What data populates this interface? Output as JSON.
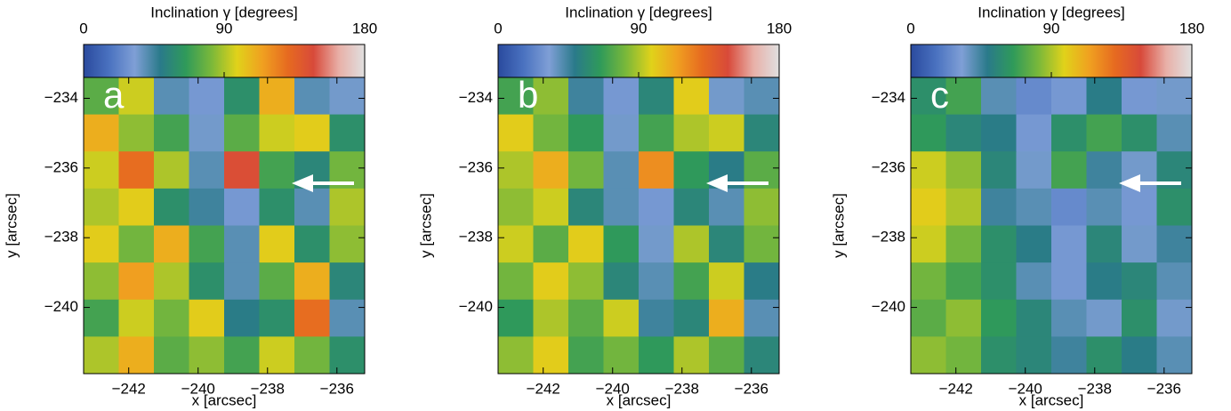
{
  "chart_data": [
    {
      "type": "heatmap",
      "title": "Inclination γ [degrees]",
      "label": "a",
      "x_label": "x [arcsec]",
      "y_label": "y [arcsec]",
      "xlim": [
        -243.3,
        -235.2
      ],
      "ylim": [
        -241.9,
        -233.4
      ],
      "zlim": [
        0,
        180
      ],
      "xticks": [
        {
          "value": -242,
          "label": "−242"
        },
        {
          "value": -240,
          "label": "−240"
        },
        {
          "value": -238,
          "label": "−238"
        },
        {
          "value": -236,
          "label": "−236"
        }
      ],
      "yticks": [
        {
          "value": -234,
          "label": "−234"
        },
        {
          "value": -236,
          "label": "−236"
        },
        {
          "value": -238,
          "label": "−238"
        },
        {
          "value": -240,
          "label": "−240"
        }
      ],
      "zticks": [
        0,
        90,
        180
      ],
      "colors": [
        "#2a4a9e",
        "#4a72c0",
        "#7f9fd6",
        "#2a7a8a",
        "#2f9a5a",
        "#7ab83a",
        "#e0d21a",
        "#f0a020",
        "#e66a20",
        "#d84a3a",
        "#e8b0a8",
        "#e0e0e0"
      ],
      "values": [
        [
          75,
          95,
          40,
          30,
          60,
          110,
          40,
          35
        ],
        [
          110,
          85,
          70,
          35,
          75,
          95,
          100,
          60
        ],
        [
          95,
          130,
          90,
          40,
          145,
          70,
          55,
          80
        ],
        [
          90,
          100,
          60,
          45,
          30,
          60,
          40,
          90
        ],
        [
          100,
          80,
          110,
          70,
          40,
          100,
          60,
          85
        ],
        [
          85,
          115,
          90,
          60,
          40,
          75,
          110,
          55
        ],
        [
          70,
          95,
          80,
          100,
          50,
          60,
          130,
          40
        ],
        [
          90,
          110,
          75,
          85,
          70,
          95,
          80,
          60
        ]
      ]
    },
    {
      "type": "heatmap",
      "title": "Inclination γ [degrees]",
      "label": "b",
      "x_label": "x [arcsec]",
      "y_label": "y [arcsec]",
      "xlim": [
        -243.3,
        -235.2
      ],
      "ylim": [
        -241.9,
        -233.4
      ],
      "zlim": [
        0,
        180
      ],
      "xticks": [
        {
          "value": -242,
          "label": "−242"
        },
        {
          "value": -240,
          "label": "−240"
        },
        {
          "value": -238,
          "label": "−238"
        },
        {
          "value": -236,
          "label": "−236"
        }
      ],
      "yticks": [
        {
          "value": -234,
          "label": "−234"
        },
        {
          "value": -236,
          "label": "−236"
        },
        {
          "value": -238,
          "label": "−238"
        },
        {
          "value": -240,
          "label": "−240"
        }
      ],
      "zticks": [
        0,
        90,
        180
      ],
      "colors": [
        "#2a4a9e",
        "#4a72c0",
        "#7f9fd6",
        "#2a7a8a",
        "#2f9a5a",
        "#7ab83a",
        "#e0d21a",
        "#f0a020",
        "#e66a20",
        "#d84a3a",
        "#e8b0a8",
        "#e0e0e0"
      ],
      "values": [
        [
          70,
          85,
          45,
          30,
          55,
          100,
          35,
          40
        ],
        [
          100,
          80,
          65,
          35,
          70,
          90,
          95,
          55
        ],
        [
          90,
          110,
          80,
          40,
          120,
          65,
          50,
          75
        ],
        [
          85,
          95,
          55,
          40,
          30,
          55,
          40,
          85
        ],
        [
          95,
          75,
          100,
          65,
          35,
          90,
          55,
          80
        ],
        [
          80,
          100,
          85,
          55,
          40,
          70,
          95,
          50
        ],
        [
          65,
          90,
          75,
          95,
          45,
          55,
          110,
          40
        ],
        [
          85,
          100,
          70,
          80,
          65,
          90,
          75,
          55
        ]
      ]
    },
    {
      "type": "heatmap",
      "title": "Inclination γ [degrees]",
      "label": "c",
      "x_label": "x [arcsec]",
      "y_label": "y [arcsec]",
      "xlim": [
        -243.3,
        -235.2
      ],
      "ylim": [
        -241.9,
        -233.4
      ],
      "zlim": [
        0,
        180
      ],
      "xticks": [
        {
          "value": -242,
          "label": "−242"
        },
        {
          "value": -240,
          "label": "−240"
        },
        {
          "value": -238,
          "label": "−238"
        },
        {
          "value": -236,
          "label": "−236"
        }
      ],
      "yticks": [
        {
          "value": -234,
          "label": "−234"
        },
        {
          "value": -236,
          "label": "−236"
        },
        {
          "value": -238,
          "label": "−238"
        },
        {
          "value": -240,
          "label": "−240"
        }
      ],
      "zticks": [
        0,
        90,
        180
      ],
      "colors": [
        "#2a4a9e",
        "#4a72c0",
        "#7f9fd6",
        "#2a7a8a",
        "#2f9a5a",
        "#7ab83a",
        "#e0d21a",
        "#f0a020",
        "#e66a20",
        "#d84a3a",
        "#e8b0a8",
        "#e0e0e0"
      ],
      "values": [
        [
          60,
          70,
          40,
          25,
          30,
          50,
          30,
          35
        ],
        [
          65,
          55,
          50,
          30,
          60,
          70,
          60,
          40
        ],
        [
          95,
          85,
          55,
          35,
          70,
          45,
          35,
          55
        ],
        [
          100,
          90,
          45,
          40,
          25,
          40,
          30,
          60
        ],
        [
          95,
          80,
          60,
          50,
          30,
          55,
          35,
          45
        ],
        [
          80,
          70,
          60,
          40,
          30,
          50,
          55,
          40
        ],
        [
          75,
          85,
          65,
          55,
          40,
          35,
          60,
          35
        ],
        [
          85,
          80,
          60,
          55,
          45,
          60,
          50,
          40
        ]
      ]
    }
  ]
}
